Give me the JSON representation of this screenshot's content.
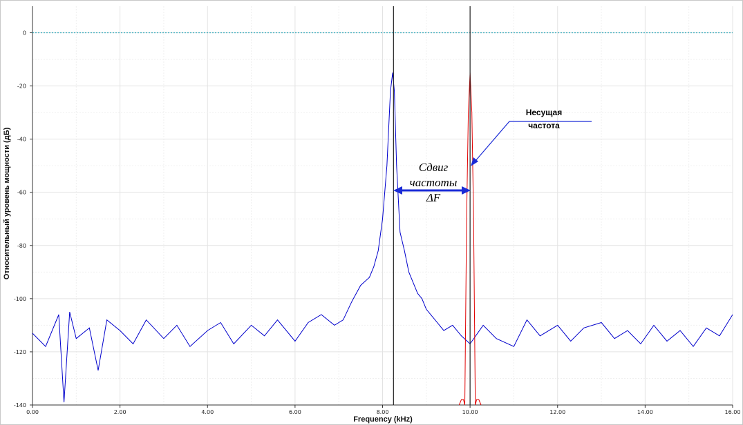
{
  "chart_data": {
    "type": "line",
    "title": "",
    "xlabel": "Frequency (kHz)",
    "ylabel": "Относительный уровень мощности (дБ)",
    "xlim": [
      0,
      16
    ],
    "ylim": [
      -140,
      10
    ],
    "grid": true,
    "x_ticks": [
      0,
      2,
      4,
      6,
      8,
      10,
      12,
      14,
      16
    ],
    "x_tick_labels": [
      "0.00",
      "2.00",
      "4.00",
      "6.00",
      "8.00",
      "10.00",
      "12.00",
      "14.00",
      "16.00"
    ],
    "y_ticks": [
      0,
      -20,
      -40,
      -60,
      -80,
      -100,
      -120,
      -140
    ],
    "y_tick_labels": [
      "0",
      "-20",
      "-40",
      "-60",
      "-80",
      "-100",
      "-120",
      "-140"
    ],
    "reference_line": {
      "y": 0,
      "color": "#2aa7b8"
    },
    "vertical_markers": [
      8.25,
      10.0
    ],
    "series": [
      {
        "color": "#0000cc",
        "x": [
          0,
          0.3,
          0.6,
          0.72,
          0.85,
          1.0,
          1.3,
          1.5,
          1.7,
          2.0,
          2.3,
          2.6,
          3.0,
          3.3,
          3.6,
          4.0,
          4.3,
          4.6,
          5.0,
          5.3,
          5.6,
          6.0,
          6.3,
          6.6,
          6.9,
          7.1,
          7.3,
          7.5,
          7.7,
          7.8,
          7.9,
          8.0,
          8.1,
          8.18,
          8.23,
          8.27,
          8.32,
          8.4,
          8.5,
          8.6,
          8.7,
          8.8,
          8.9,
          9.0,
          9.2,
          9.4,
          9.6,
          9.8,
          10.0,
          10.3,
          10.6,
          11.0,
          11.3,
          11.6,
          12.0,
          12.3,
          12.6,
          13.0,
          13.3,
          13.6,
          13.9,
          14.2,
          14.5,
          14.8,
          15.1,
          15.4,
          15.7,
          16.0
        ],
        "y": [
          -113,
          -118,
          -106,
          -139,
          -105,
          -115,
          -111,
          -127,
          -108,
          -112,
          -117,
          -108,
          -115,
          -110,
          -118,
          -112,
          -109,
          -117,
          -110,
          -114,
          -108,
          -116,
          -109,
          -106,
          -110,
          -108,
          -101,
          -95,
          -92,
          -88,
          -82,
          -70,
          -50,
          -22,
          -15,
          -22,
          -50,
          -75,
          -82,
          -90,
          -94,
          -98,
          -100,
          -104,
          -108,
          -112,
          -110,
          -114,
          -117,
          -110,
          -115,
          -118,
          -108,
          -114,
          -110,
          -116,
          -111,
          -109,
          -115,
          -112,
          -117,
          -110,
          -116,
          -112,
          -118,
          -111,
          -114,
          -106
        ]
      },
      {
        "color": "#e00000",
        "x": [
          9.75,
          9.8,
          9.85,
          9.88,
          9.92,
          9.96,
          10.0,
          10.04,
          10.08,
          10.12,
          10.15,
          10.2,
          10.25
        ],
        "y": [
          -140,
          -138,
          -138,
          -140,
          -70,
          -30,
          -15,
          -30,
          -70,
          -140,
          -138,
          -138,
          -140
        ]
      }
    ]
  },
  "annotations": {
    "carrier_label_line1": "Несущая",
    "carrier_label_line2": "частота",
    "shift_label_line1": "Сдвиг",
    "shift_label_line2": "частоты",
    "shift_label_line3": "ΔF"
  }
}
